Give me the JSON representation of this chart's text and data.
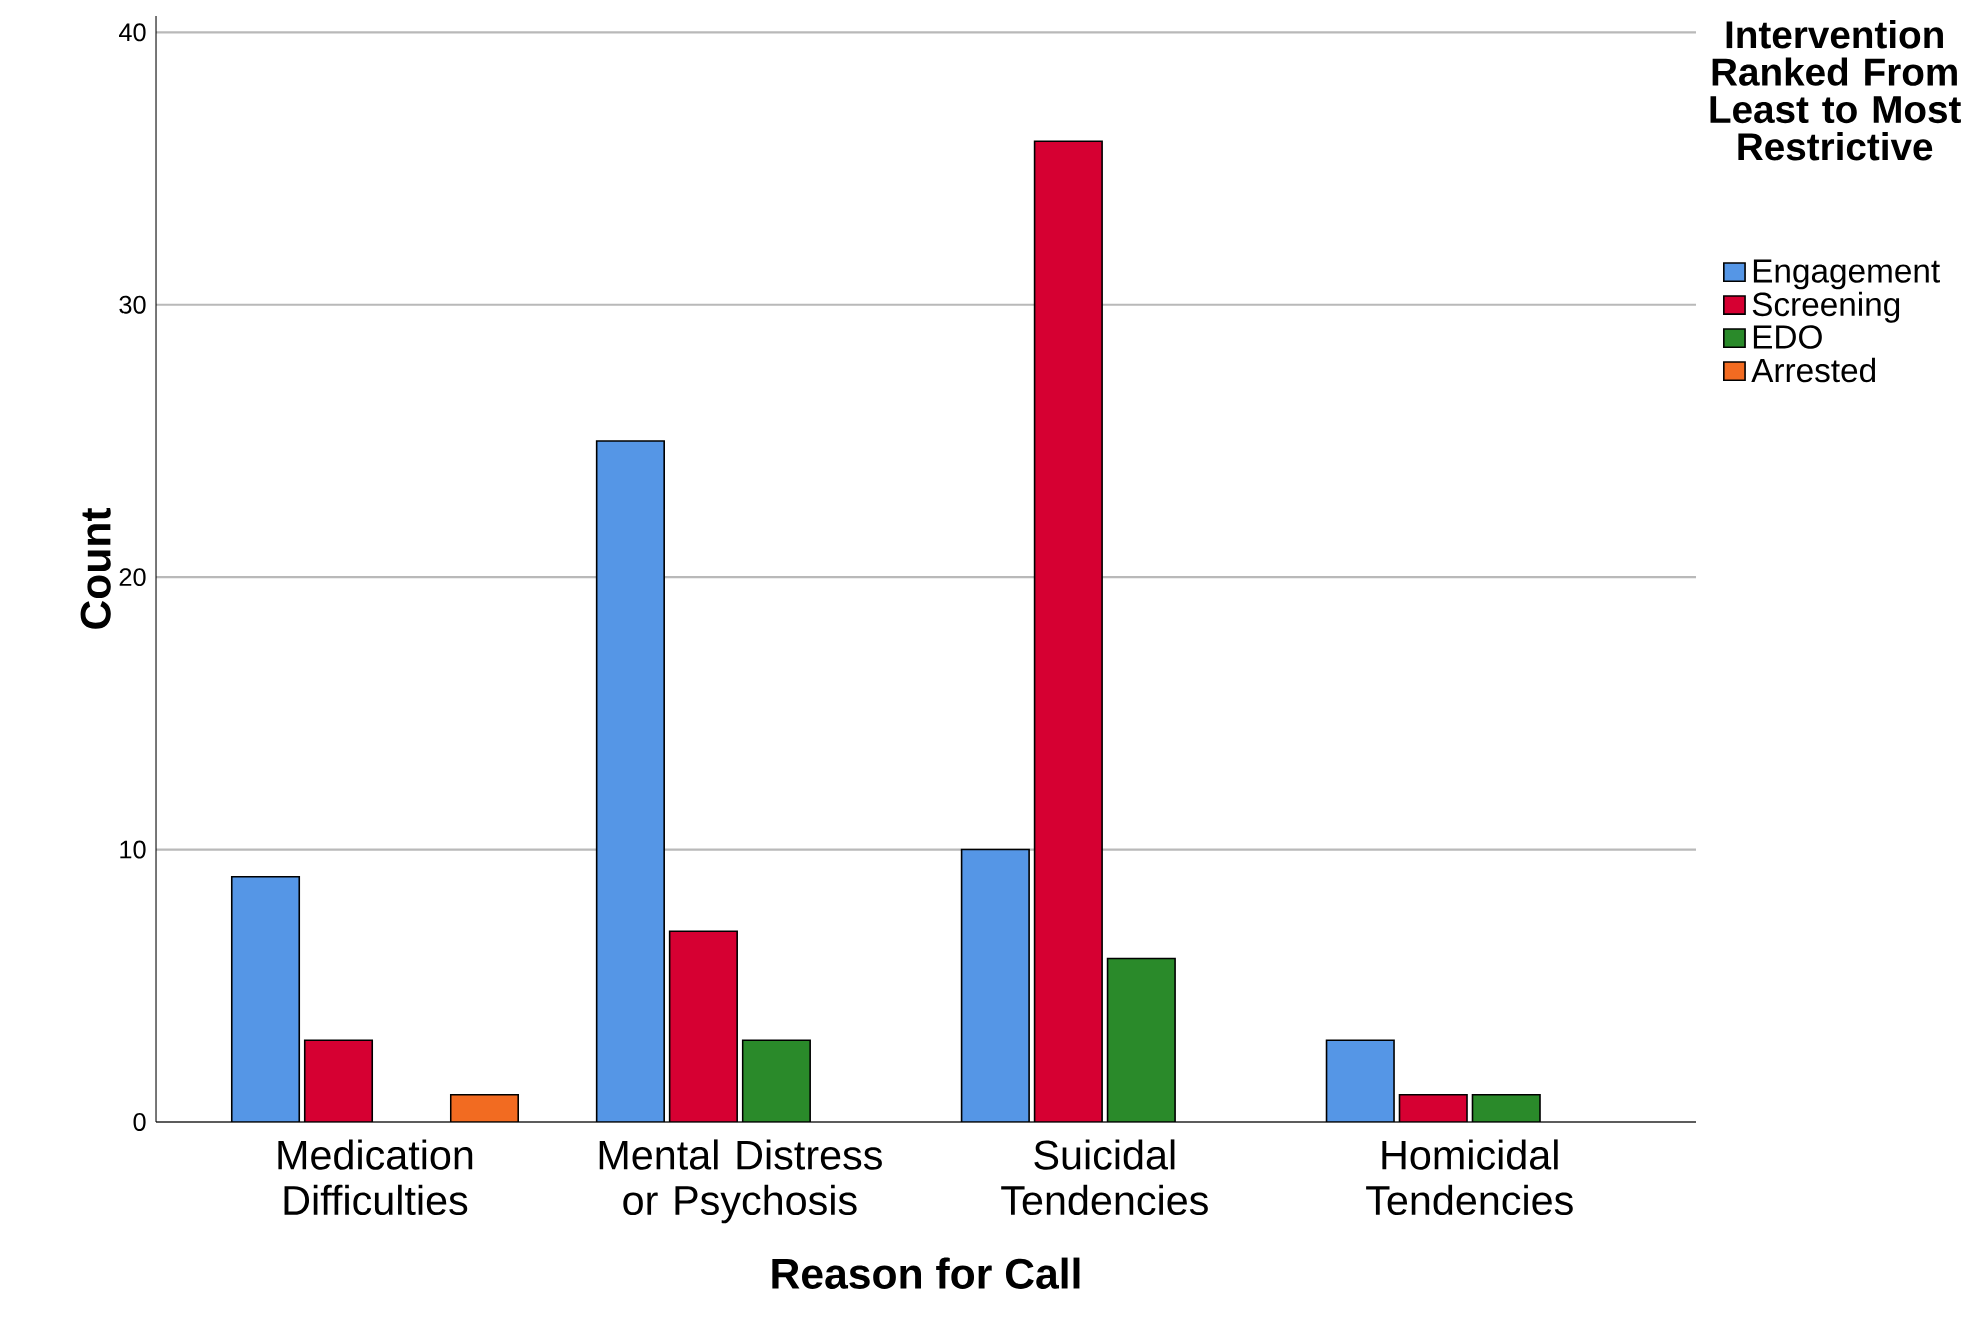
{
  "chart_data": {
    "type": "bar",
    "xlabel": "Reason for Call",
    "ylabel": "Count",
    "legend_title": "Intervention Ranked From Least to Most Restrictive",
    "categories": [
      "Medication Difficulties",
      "Mental Distress or Psychosis",
      "Suicidal Tendencies",
      "Homicidal Tendencies"
    ],
    "series": [
      {
        "name": "Engagement",
        "color": "#5596e6",
        "values": [
          9,
          25,
          10,
          3
        ]
      },
      {
        "name": "Screening",
        "color": "#d60032",
        "values": [
          3,
          7,
          36,
          1
        ]
      },
      {
        "name": "EDO",
        "color": "#2a8a2a",
        "values": [
          null,
          3,
          6,
          1
        ]
      },
      {
        "name": "Arrested",
        "color": "#f26b21",
        "values": [
          1,
          null,
          null,
          null
        ]
      }
    ],
    "ylim": [
      0,
      40.6
    ],
    "yticks": [
      0,
      10,
      20,
      30,
      40
    ],
    "grid": "y",
    "legend": "right"
  }
}
